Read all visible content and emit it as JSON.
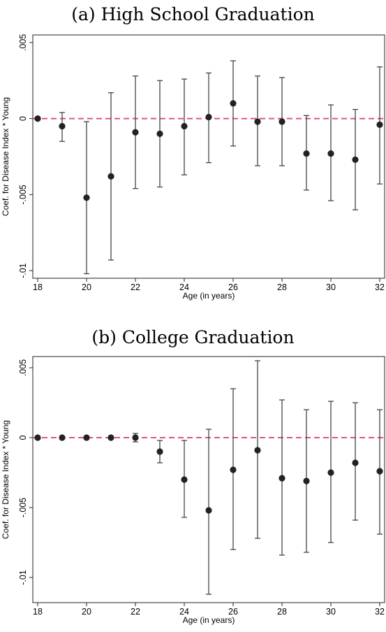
{
  "chart_data": [
    {
      "type": "scatter",
      "title": "(a) High School Graduation",
      "xlabel": "Age (in years)",
      "ylabel": "Coef. for Disease Index * Young",
      "xlim": [
        18,
        32
      ],
      "ylim": [
        -0.0105,
        0.0055
      ],
      "x_ticks": [
        18,
        20,
        22,
        24,
        26,
        28,
        30,
        32
      ],
      "y_ticks": [
        0.005,
        0,
        -0.005,
        -0.01
      ],
      "y_tick_labels": [
        ".005",
        "0",
        "-.005",
        "-.01"
      ],
      "reference_line": {
        "y": 0,
        "style": "dashed",
        "color": "#e0508a"
      },
      "marker_color": "#222222",
      "points": [
        {
          "x": 18,
          "y": 0.0,
          "lo": null,
          "hi": null
        },
        {
          "x": 19,
          "y": -0.0005,
          "lo": -0.0015,
          "hi": 0.0004
        },
        {
          "x": 20,
          "y": -0.0052,
          "lo": -0.0102,
          "hi": -0.0002
        },
        {
          "x": 21,
          "y": -0.0038,
          "lo": -0.0093,
          "hi": 0.0017
        },
        {
          "x": 22,
          "y": -0.0009,
          "lo": -0.0046,
          "hi": 0.0028
        },
        {
          "x": 23,
          "y": -0.001,
          "lo": -0.0045,
          "hi": 0.0025
        },
        {
          "x": 24,
          "y": -0.0005,
          "lo": -0.0037,
          "hi": 0.0026
        },
        {
          "x": 25,
          "y": 0.0001,
          "lo": -0.0029,
          "hi": 0.003
        },
        {
          "x": 26,
          "y": 0.001,
          "lo": -0.0018,
          "hi": 0.0038
        },
        {
          "x": 27,
          "y": -0.0002,
          "lo": -0.0031,
          "hi": 0.0028
        },
        {
          "x": 28,
          "y": -0.0002,
          "lo": -0.0031,
          "hi": 0.0027
        },
        {
          "x": 29,
          "y": -0.0023,
          "lo": -0.0047,
          "hi": 0.0002
        },
        {
          "x": 30,
          "y": -0.0023,
          "lo": -0.0054,
          "hi": 0.0009
        },
        {
          "x": 31,
          "y": -0.0027,
          "lo": -0.006,
          "hi": 0.0006
        },
        {
          "x": 32,
          "y": -0.0004,
          "lo": -0.0043,
          "hi": 0.0034
        }
      ]
    },
    {
      "type": "scatter",
      "title": "(b) College Graduation",
      "xlabel": "Age (in years)",
      "ylabel": "Coef. for Disease Index * Young",
      "xlim": [
        18,
        32
      ],
      "ylim": [
        -0.0118,
        0.0058
      ],
      "x_ticks": [
        18,
        20,
        22,
        24,
        26,
        28,
        30,
        32
      ],
      "y_ticks": [
        0.005,
        0,
        -0.005,
        -0.01
      ],
      "y_tick_labels": [
        ".005",
        "0",
        "-.005",
        "-.01"
      ],
      "reference_line": {
        "y": 0,
        "style": "dashed",
        "color": "#e0508a"
      },
      "marker_color": "#222222",
      "points": [
        {
          "x": 18,
          "y": 0.0,
          "lo": null,
          "hi": null
        },
        {
          "x": 19,
          "y": 0.0,
          "lo": null,
          "hi": null
        },
        {
          "x": 20,
          "y": 0.0,
          "lo": null,
          "hi": null
        },
        {
          "x": 21,
          "y": 0.0,
          "lo": null,
          "hi": null
        },
        {
          "x": 22,
          "y": 0.0,
          "lo": -0.0003,
          "hi": 0.0003
        },
        {
          "x": 23,
          "y": -0.001,
          "lo": -0.0018,
          "hi": -0.0002
        },
        {
          "x": 24,
          "y": -0.003,
          "lo": -0.0057,
          "hi": -0.0002
        },
        {
          "x": 25,
          "y": -0.0052,
          "lo": -0.0112,
          "hi": 0.0006
        },
        {
          "x": 26,
          "y": -0.0023,
          "lo": -0.008,
          "hi": 0.0035
        },
        {
          "x": 27,
          "y": -0.0009,
          "lo": -0.0072,
          "hi": 0.0055
        },
        {
          "x": 28,
          "y": -0.0029,
          "lo": -0.0084,
          "hi": 0.0027
        },
        {
          "x": 29,
          "y": -0.0031,
          "lo": -0.0082,
          "hi": 0.002
        },
        {
          "x": 30,
          "y": -0.0025,
          "lo": -0.0075,
          "hi": 0.0026
        },
        {
          "x": 31,
          "y": -0.0018,
          "lo": -0.0059,
          "hi": 0.0025
        },
        {
          "x": 32,
          "y": -0.0024,
          "lo": -0.0069,
          "hi": 0.002
        }
      ]
    }
  ]
}
